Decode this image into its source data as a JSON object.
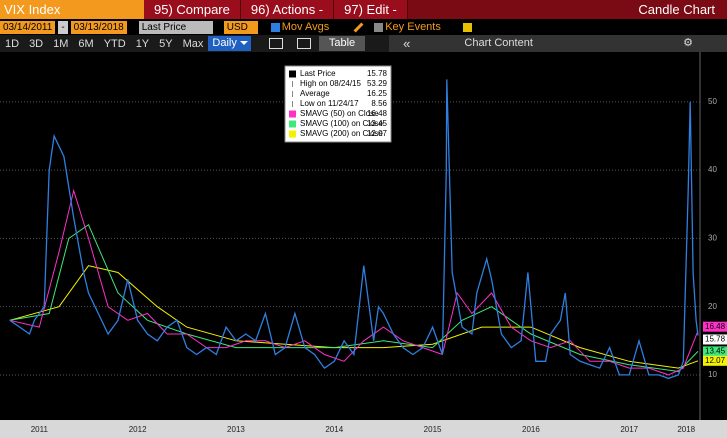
{
  "toolbar": {
    "security": "VIX Index",
    "buttons": [
      "95) Compare",
      "96) Actions -",
      "97) Edit -"
    ],
    "view": "Candle Chart",
    "start_date": "03/14/2011",
    "separator": "-",
    "end_date": "03/13/2018",
    "field": "Last Price",
    "currency": "USD",
    "mov_avgs": "Mov Avgs",
    "key_events": "Key Events",
    "periods": [
      "1D",
      "3D",
      "1M",
      "6M",
      "YTD",
      "1Y",
      "5Y",
      "Max"
    ],
    "frequency": "Daily",
    "table": "Table",
    "collapse": "«",
    "chart_content": "Chart Content"
  },
  "chart_data": {
    "type": "line",
    "xlim": [
      2011.1,
      2018.22
    ],
    "xticks": [
      {
        "value": 2011.5,
        "label": "2011"
      },
      {
        "value": 2012.5,
        "label": "2012"
      },
      {
        "value": 2013.5,
        "label": "2013"
      },
      {
        "value": 2014.5,
        "label": "2014"
      },
      {
        "value": 2015.5,
        "label": "2015"
      },
      {
        "value": 2016.5,
        "label": "2016"
      },
      {
        "value": 2017.5,
        "label": "2017"
      },
      {
        "value": 2018.08,
        "label": "2018"
      }
    ],
    "ylim": [
      3.4,
      57.3
    ],
    "yticks": [
      10,
      20,
      30,
      40,
      50
    ],
    "grid": true,
    "series": [
      {
        "name": "Last Price",
        "color": "#2f7fe0",
        "x": [
          2011.2,
          2011.3,
          2011.4,
          2011.45,
          2011.55,
          2011.6,
          2011.65,
          2011.75,
          2011.85,
          2011.95,
          2012.0,
          2012.1,
          2012.2,
          2012.3,
          2012.4,
          2012.5,
          2012.6,
          2012.7,
          2012.8,
          2012.9,
          2013.0,
          2013.1,
          2013.2,
          2013.3,
          2013.4,
          2013.5,
          2013.6,
          2013.7,
          2013.8,
          2013.9,
          2014.0,
          2014.1,
          2014.2,
          2014.3,
          2014.4,
          2014.5,
          2014.6,
          2014.7,
          2014.8,
          2014.9,
          2014.95,
          2015.0,
          2015.1,
          2015.2,
          2015.3,
          2015.4,
          2015.5,
          2015.6,
          2015.64,
          2015.645,
          2015.7,
          2015.8,
          2015.9,
          2015.95,
          2016.05,
          2016.1,
          2016.2,
          2016.3,
          2016.4,
          2016.47,
          2016.55,
          2016.65,
          2016.7,
          2016.8,
          2016.85,
          2016.9,
          2017.0,
          2017.1,
          2017.2,
          2017.3,
          2017.4,
          2017.5,
          2017.6,
          2017.7,
          2017.8,
          2017.9,
          2018.0,
          2018.05,
          2018.1,
          2018.12,
          2018.15,
          2018.18,
          2018.2
        ],
        "values": [
          18,
          17,
          16,
          18,
          20,
          40,
          45,
          42,
          33,
          25,
          22,
          19,
          16,
          18,
          24,
          18,
          16,
          15,
          17,
          18,
          14,
          13,
          14,
          13,
          17,
          15,
          16,
          15,
          19,
          13,
          14,
          19,
          14,
          13,
          11,
          12,
          15,
          13,
          26,
          15,
          20,
          19,
          16,
          14,
          13,
          14,
          17,
          13,
          40,
          53.29,
          25,
          17,
          16,
          22,
          27,
          24,
          16,
          14,
          15,
          25,
          12,
          12,
          16,
          18,
          22,
          13,
          12,
          11.5,
          11,
          14,
          10,
          10,
          15,
          10,
          10,
          9.5,
          10,
          12,
          37,
          50,
          25,
          18,
          15.78
        ]
      },
      {
        "name": "SMAVG (50) on Close",
        "color": "#ff2fc8",
        "x": [
          2011.2,
          2011.5,
          2011.7,
          2011.85,
          2012.0,
          2012.2,
          2012.4,
          2012.6,
          2012.8,
          2013.0,
          2013.2,
          2013.4,
          2013.6,
          2013.8,
          2014.0,
          2014.2,
          2014.4,
          2014.6,
          2014.8,
          2015.0,
          2015.2,
          2015.4,
          2015.6,
          2015.75,
          2015.9,
          2016.1,
          2016.3,
          2016.5,
          2016.7,
          2016.9,
          2017.1,
          2017.3,
          2017.5,
          2017.7,
          2017.9,
          2018.05,
          2018.2
        ],
        "values": [
          18,
          17,
          28,
          37,
          30,
          20,
          18,
          19,
          16,
          16,
          14,
          14,
          15,
          15,
          14,
          15,
          13,
          12,
          15,
          17,
          15,
          14,
          13,
          22,
          19,
          22,
          17,
          15,
          14,
          15,
          12,
          12,
          11,
          11,
          10,
          11,
          16.48
        ]
      },
      {
        "name": "SMAVG (100) on Close",
        "color": "#3ee87a",
        "x": [
          2011.2,
          2011.6,
          2011.8,
          2012.0,
          2012.3,
          2012.6,
          2013.0,
          2013.5,
          2014.0,
          2014.5,
          2015.0,
          2015.5,
          2015.8,
          2016.1,
          2016.5,
          2017.0,
          2017.5,
          2018.0,
          2018.2
        ],
        "values": [
          18,
          19,
          30,
          32,
          22,
          18,
          16,
          14,
          14,
          14,
          15,
          14,
          18,
          20,
          16,
          13,
          11.5,
          10.5,
          13.45
        ]
      },
      {
        "name": "SMAVG (200) on Close",
        "color": "#f5f200",
        "x": [
          2011.2,
          2011.7,
          2012.0,
          2012.3,
          2012.7,
          2013.0,
          2013.5,
          2014.0,
          2014.5,
          2015.0,
          2015.5,
          2016.0,
          2016.5,
          2017.0,
          2017.5,
          2018.0,
          2018.2
        ],
        "values": [
          18,
          20,
          26,
          25,
          20,
          17,
          15,
          14.5,
          14,
          14,
          14.5,
          17,
          17,
          14,
          12,
          11,
          12.07
        ]
      }
    ],
    "stats": [
      {
        "name": "High on 08/24/15",
        "value": 53.29
      },
      {
        "name": "Average",
        "value": 16.25
      },
      {
        "name": "Low on 11/24/17",
        "value": 8.56
      }
    ]
  }
}
